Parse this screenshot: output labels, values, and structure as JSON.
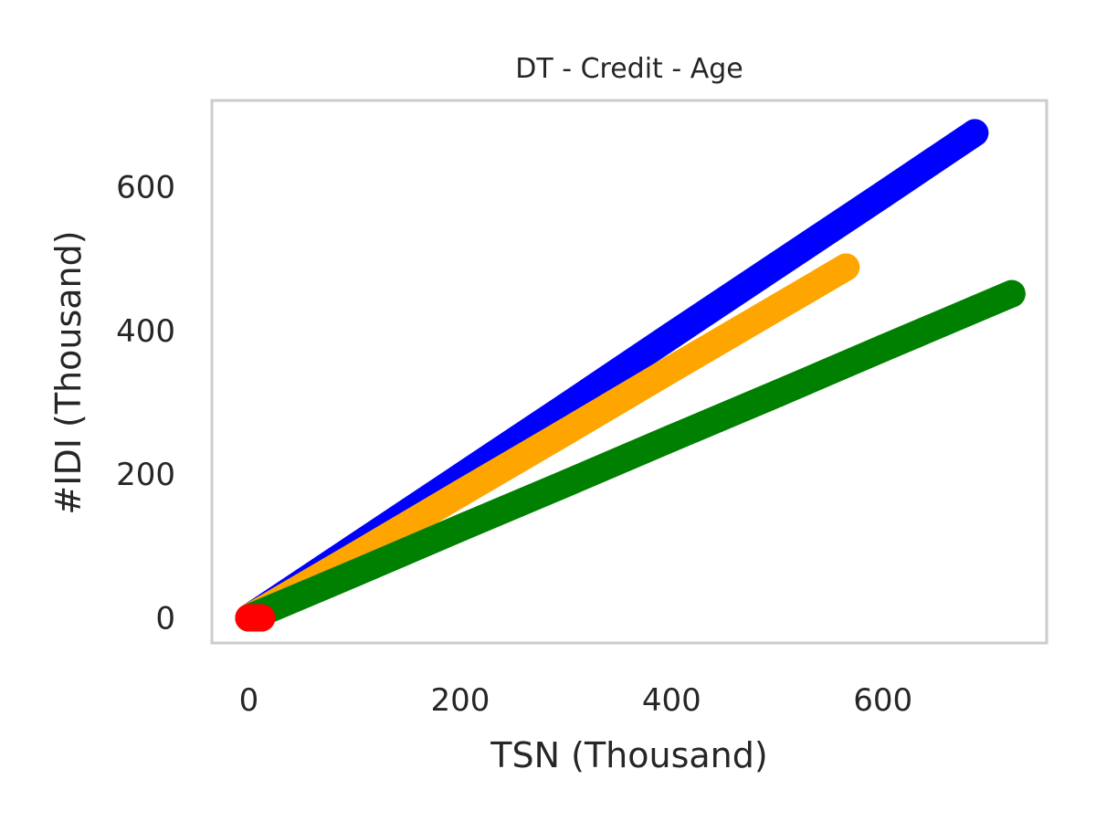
{
  "chart_data": {
    "type": "scatter",
    "title": "DT - Credit - Age",
    "xlabel": "TSN (Thousand)",
    "ylabel": "#IDI (Thousand)",
    "xlim": [
      -35,
      755
    ],
    "ylim": [
      -35,
      720
    ],
    "xticks": [
      0,
      200,
      400,
      600
    ],
    "yticks": [
      0,
      200,
      400,
      600
    ],
    "xtick_labels": [
      "0",
      "200",
      "400",
      "600"
    ],
    "ytick_labels": [
      "0",
      "200",
      "400",
      "600"
    ],
    "grid": false,
    "legend": "none",
    "series": [
      {
        "color": "#0000ff",
        "x": [
          0,
          100,
          200,
          300,
          400,
          500,
          600,
          687
        ],
        "y": [
          0,
          98,
          196,
          294,
          393,
          491,
          589,
          675
        ]
      },
      {
        "color": "#ffa500",
        "x": [
          0,
          100,
          200,
          300,
          400,
          500,
          565
        ],
        "y": [
          0,
          86,
          173,
          259,
          346,
          432,
          488
        ]
      },
      {
        "color": "#008000",
        "x": [
          0,
          100,
          200,
          300,
          400,
          500,
          600,
          722
        ],
        "y": [
          0,
          62,
          125,
          187,
          250,
          312,
          375,
          451
        ]
      },
      {
        "color": "#ff0000",
        "x": [
          0,
          3,
          6,
          9,
          12
        ],
        "y": [
          0,
          0,
          0,
          0,
          0
        ]
      }
    ]
  }
}
